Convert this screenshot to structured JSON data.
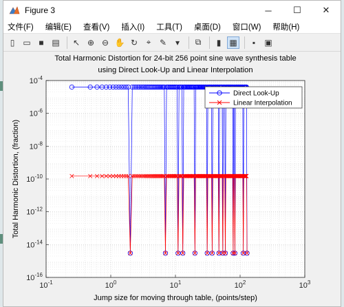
{
  "window": {
    "title": "Figure 3",
    "controls": {
      "minimize": "─",
      "maximize": "☐",
      "close": "✕"
    }
  },
  "menu": [
    {
      "label": "文件(F)"
    },
    {
      "label": "编辑(E)"
    },
    {
      "label": "查看(V)"
    },
    {
      "label": "插入(I)"
    },
    {
      "label": "工具(T)"
    },
    {
      "label": "桌面(D)"
    },
    {
      "label": "窗口(W)"
    },
    {
      "label": "帮助(H)"
    }
  ],
  "toolbar": [
    {
      "icon": "new-figure-icon",
      "glyph": "▯"
    },
    {
      "icon": "open-folder-icon",
      "glyph": "▭"
    },
    {
      "icon": "save-icon",
      "glyph": "■"
    },
    {
      "icon": "print-icon",
      "glyph": "▤"
    },
    {
      "sep": true
    },
    {
      "icon": "pointer-icon",
      "glyph": "↖"
    },
    {
      "icon": "zoom-in-icon",
      "glyph": "⊕"
    },
    {
      "icon": "zoom-out-icon",
      "glyph": "⊖"
    },
    {
      "icon": "pan-hand-icon",
      "glyph": "✋"
    },
    {
      "icon": "rotate-3d-icon",
      "glyph": "↻"
    },
    {
      "icon": "data-cursor-icon",
      "glyph": "⌖"
    },
    {
      "icon": "brush-icon",
      "glyph": "✎"
    },
    {
      "icon": "dropdown-arrow-icon",
      "glyph": "▾"
    },
    {
      "sep": true
    },
    {
      "icon": "link-plot-icon",
      "glyph": "⧉"
    },
    {
      "sep": true
    },
    {
      "icon": "colorbar-icon",
      "glyph": "▮"
    },
    {
      "icon": "legend-icon",
      "glyph": "▦",
      "active": true
    },
    {
      "sep": true
    },
    {
      "icon": "hide-plot-tools-icon",
      "glyph": "▪"
    },
    {
      "icon": "show-plot-tools-icon",
      "glyph": "▣"
    }
  ],
  "chart_data": {
    "type": "line",
    "title": [
      "Total Harmonic Distortion for 24-bit 256 point sine wave synthesis table",
      "using Direct Look-Up and Linear Interpolation"
    ],
    "xlabel": "Jump size for moving through table, (points/step)",
    "ylabel": "Total Harmonic Distortion, (fraction)",
    "xscale": "log",
    "yscale": "log",
    "xlim": [
      0.1,
      1000
    ],
    "ylim": [
      1e-16,
      0.0001
    ],
    "xticks": [
      {
        "exp": "-1"
      },
      {
        "exp": "0"
      },
      {
        "exp": "1"
      },
      {
        "exp": "2"
      },
      {
        "exp": "3"
      }
    ],
    "yticks": [
      {
        "exp": "-16"
      },
      {
        "exp": "-14"
      },
      {
        "exp": "-12"
      },
      {
        "exp": "-10"
      },
      {
        "exp": "-8"
      },
      {
        "exp": "-6"
      },
      {
        "exp": "-4"
      }
    ],
    "tick_base": "10",
    "grid": "dotted",
    "legend_position": "top-right",
    "series": [
      {
        "name": "Direct Look-Up",
        "color": "#0000ff",
        "marker": "circle",
        "high_value": 4e-05,
        "low_value": 3e-15,
        "x_range": [
          0.25,
          128
        ]
      },
      {
        "name": "Linear Interpolation",
        "color": "#ff0000",
        "marker": "x",
        "high_value": 1.5e-10,
        "low_value": 3e-15,
        "x_range": [
          0.25,
          128
        ]
      }
    ]
  }
}
